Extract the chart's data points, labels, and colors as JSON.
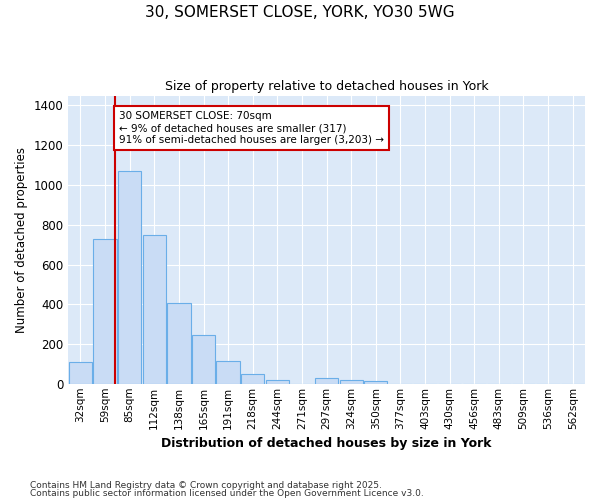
{
  "title1": "30, SOMERSET CLOSE, YORK, YO30 5WG",
  "title2": "Size of property relative to detached houses in York",
  "xlabel": "Distribution of detached houses by size in York",
  "ylabel": "Number of detached properties",
  "bin_labels": [
    "32sqm",
    "59sqm",
    "85sqm",
    "112sqm",
    "138sqm",
    "165sqm",
    "191sqm",
    "218sqm",
    "244sqm",
    "271sqm",
    "297sqm",
    "324sqm",
    "350sqm",
    "377sqm",
    "403sqm",
    "430sqm",
    "456sqm",
    "483sqm",
    "509sqm",
    "536sqm",
    "562sqm"
  ],
  "bar_heights": [
    110,
    730,
    1070,
    750,
    405,
    245,
    115,
    50,
    20,
    0,
    28,
    20,
    15,
    0,
    0,
    0,
    0,
    0,
    0,
    0,
    0
  ],
  "bar_color": "#c9dcf5",
  "bar_edge_color": "#6aaee8",
  "red_line_bin": 1,
  "annotation_text": "30 SOMERSET CLOSE: 70sqm\n← 9% of detached houses are smaller (317)\n91% of semi-detached houses are larger (3,203) →",
  "annotation_box_color": "#ffffff",
  "annotation_box_edge": "#cc0000",
  "red_line_color": "#cc0000",
  "ylim": [
    0,
    1450
  ],
  "yticks": [
    0,
    200,
    400,
    600,
    800,
    1000,
    1200,
    1400
  ],
  "plot_bg_color": "#dce9f8",
  "fig_bg_color": "#ffffff",
  "grid_color": "#ffffff",
  "footnote1": "Contains HM Land Registry data © Crown copyright and database right 2025.",
  "footnote2": "Contains public sector information licensed under the Open Government Licence v3.0."
}
